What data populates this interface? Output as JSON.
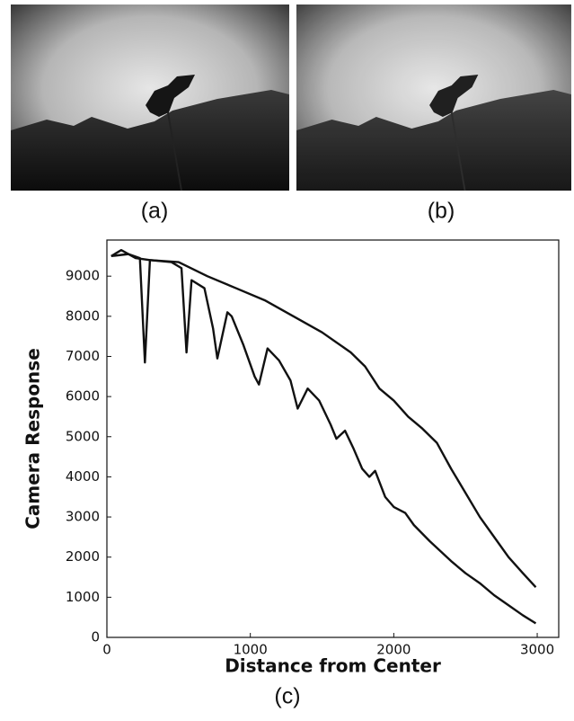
{
  "panels": {
    "a": "(a)",
    "b": "(b)",
    "c": "(c)"
  },
  "chart_data": {
    "type": "line",
    "xlabel": "Distance from Center",
    "ylabel": "Camera Response",
    "xlim": [
      0,
      3150
    ],
    "ylim": [
      0,
      9900
    ],
    "xticks": [
      0,
      1000,
      2000,
      3000
    ],
    "yticks": [
      0,
      1000,
      2000,
      3000,
      4000,
      5000,
      6000,
      7000,
      8000,
      9000
    ],
    "series": [
      {
        "color": "#111111",
        "x": [
          30,
          100,
          200,
          300,
          500,
          700,
          900,
          1100,
          1300,
          1500,
          1700,
          1800,
          1900,
          2000,
          2100,
          2200,
          2300,
          2400,
          2500,
          2600,
          2700,
          2800,
          2900,
          2990
        ],
        "values": [
          9500,
          9650,
          9450,
          9400,
          9350,
          9000,
          8700,
          8400,
          8000,
          7600,
          7100,
          6750,
          6200,
          5900,
          5500,
          5200,
          4850,
          4200,
          3600,
          3000,
          2500,
          2000,
          1600,
          1250
        ]
      },
      {
        "color": "#111111",
        "x": [
          30,
          150,
          230,
          265,
          300,
          450,
          520,
          555,
          590,
          680,
          740,
          770,
          840,
          870,
          950,
          1030,
          1060,
          1120,
          1200,
          1280,
          1330,
          1400,
          1480,
          1560,
          1600,
          1660,
          1720,
          1780,
          1830,
          1870,
          1940,
          2000,
          2080,
          2140,
          2250,
          2400,
          2500,
          2600,
          2700,
          2800,
          2900,
          2990
        ],
        "values": [
          9500,
          9550,
          9450,
          6850,
          9400,
          9350,
          9200,
          7100,
          8900,
          8700,
          7700,
          6950,
          8100,
          8000,
          7300,
          6500,
          6300,
          7200,
          6900,
          6400,
          5700,
          6200,
          5900,
          5300,
          4950,
          5150,
          4700,
          4200,
          4000,
          4150,
          3500,
          3250,
          3100,
          2800,
          2400,
          1900,
          1600,
          1350,
          1050,
          800,
          550,
          350
        ]
      }
    ]
  }
}
